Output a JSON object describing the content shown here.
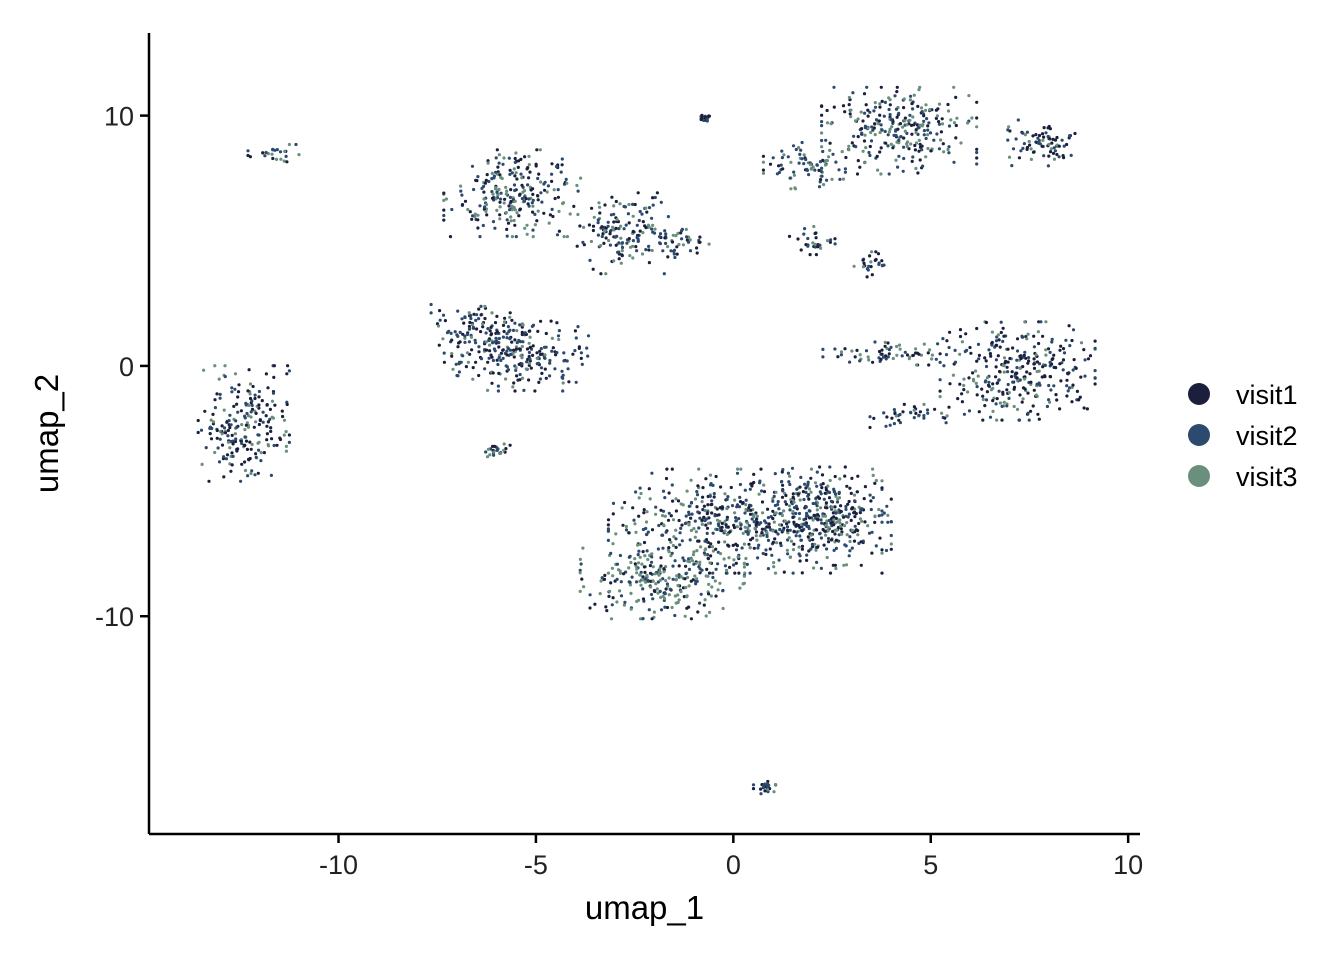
{
  "chart_data": {
    "type": "scatter",
    "title": "",
    "xlabel": "umap_1",
    "ylabel": "umap_2",
    "xlim": [
      -14.8,
      10.3
    ],
    "ylim": [
      -18.7,
      13.3
    ],
    "xticks": [
      -10,
      -5,
      0,
      5,
      10
    ],
    "yticks": [
      -10,
      0,
      10
    ],
    "xtick_labels": [
      "-10",
      "-5",
      "0",
      "5",
      "10"
    ],
    "ytick_labels": [
      "-10",
      "0",
      "10"
    ],
    "grid": false,
    "legend_position": "right",
    "series": [
      {
        "name": "visit1",
        "color": "#1b1f3b"
      },
      {
        "name": "visit2",
        "color": "#2c4a6e"
      },
      {
        "name": "visit3",
        "color": "#6a8f7c"
      }
    ],
    "clusters": [
      {
        "center": [
          -12.4,
          -2.3
        ],
        "spread": [
          1.0,
          2.0
        ],
        "weights": [
          0.4,
          0.35,
          0.25
        ]
      },
      {
        "center": [
          -11.6,
          8.5
        ],
        "spread": [
          0.6,
          0.3
        ],
        "weights": [
          0.3,
          0.3,
          0.4
        ]
      },
      {
        "center": [
          -5.6,
          6.9
        ],
        "spread": [
          1.5,
          1.5
        ],
        "weights": [
          0.35,
          0.35,
          0.3
        ]
      },
      {
        "center": [
          -2.8,
          5.3
        ],
        "spread": [
          1.0,
          1.4
        ],
        "weights": [
          0.35,
          0.4,
          0.25
        ]
      },
      {
        "center": [
          -1.3,
          4.9
        ],
        "spread": [
          0.7,
          0.5
        ],
        "weights": [
          0.3,
          0.45,
          0.25
        ]
      },
      {
        "center": [
          -6.5,
          1.3
        ],
        "spread": [
          1.0,
          1.0
        ],
        "weights": [
          0.45,
          0.35,
          0.2
        ]
      },
      {
        "center": [
          -5.4,
          0.5
        ],
        "spread": [
          1.5,
          1.3
        ],
        "weights": [
          0.4,
          0.4,
          0.2
        ]
      },
      {
        "center": [
          -6.0,
          -3.4
        ],
        "spread": [
          0.3,
          0.3
        ],
        "weights": [
          0.3,
          0.5,
          0.2
        ]
      },
      {
        "center": [
          -0.7,
          9.9
        ],
        "spread": [
          0.1,
          0.1
        ],
        "weights": [
          0.3,
          0.5,
          0.2
        ]
      },
      {
        "center": [
          4.2,
          9.4
        ],
        "spread": [
          1.7,
          1.5
        ],
        "weights": [
          0.4,
          0.35,
          0.25
        ]
      },
      {
        "center": [
          1.8,
          8.0
        ],
        "spread": [
          0.9,
          0.8
        ],
        "weights": [
          0.3,
          0.35,
          0.35
        ]
      },
      {
        "center": [
          7.8,
          8.9
        ],
        "spread": [
          0.9,
          0.8
        ],
        "weights": [
          0.45,
          0.35,
          0.2
        ]
      },
      {
        "center": [
          2.0,
          5.0
        ],
        "spread": [
          0.5,
          0.5
        ],
        "weights": [
          0.45,
          0.4,
          0.15
        ]
      },
      {
        "center": [
          3.5,
          4.0
        ],
        "spread": [
          0.4,
          0.5
        ],
        "weights": [
          0.45,
          0.4,
          0.15
        ]
      },
      {
        "center": [
          7.2,
          -0.2
        ],
        "spread": [
          1.7,
          1.7
        ],
        "weights": [
          0.5,
          0.3,
          0.2
        ]
      },
      {
        "center": [
          4.0,
          0.5
        ],
        "spread": [
          1.5,
          0.4
        ],
        "weights": [
          0.3,
          0.4,
          0.3
        ]
      },
      {
        "center": [
          4.5,
          -2.0
        ],
        "spread": [
          0.9,
          0.4
        ],
        "weights": [
          0.35,
          0.4,
          0.25
        ]
      },
      {
        "center": [
          0.3,
          -6.2
        ],
        "spread": [
          3.0,
          1.8
        ],
        "weights": [
          0.35,
          0.35,
          0.3
        ]
      },
      {
        "center": [
          -1.8,
          -8.6
        ],
        "spread": [
          1.8,
          1.3
        ],
        "weights": [
          0.2,
          0.3,
          0.5
        ]
      },
      {
        "center": [
          2.5,
          -6.0
        ],
        "spread": [
          1.3,
          1.7
        ],
        "weights": [
          0.45,
          0.35,
          0.2
        ]
      },
      {
        "center": [
          0.8,
          -16.8
        ],
        "spread": [
          0.25,
          0.25
        ],
        "weights": [
          0.3,
          0.5,
          0.2
        ]
      }
    ]
  }
}
